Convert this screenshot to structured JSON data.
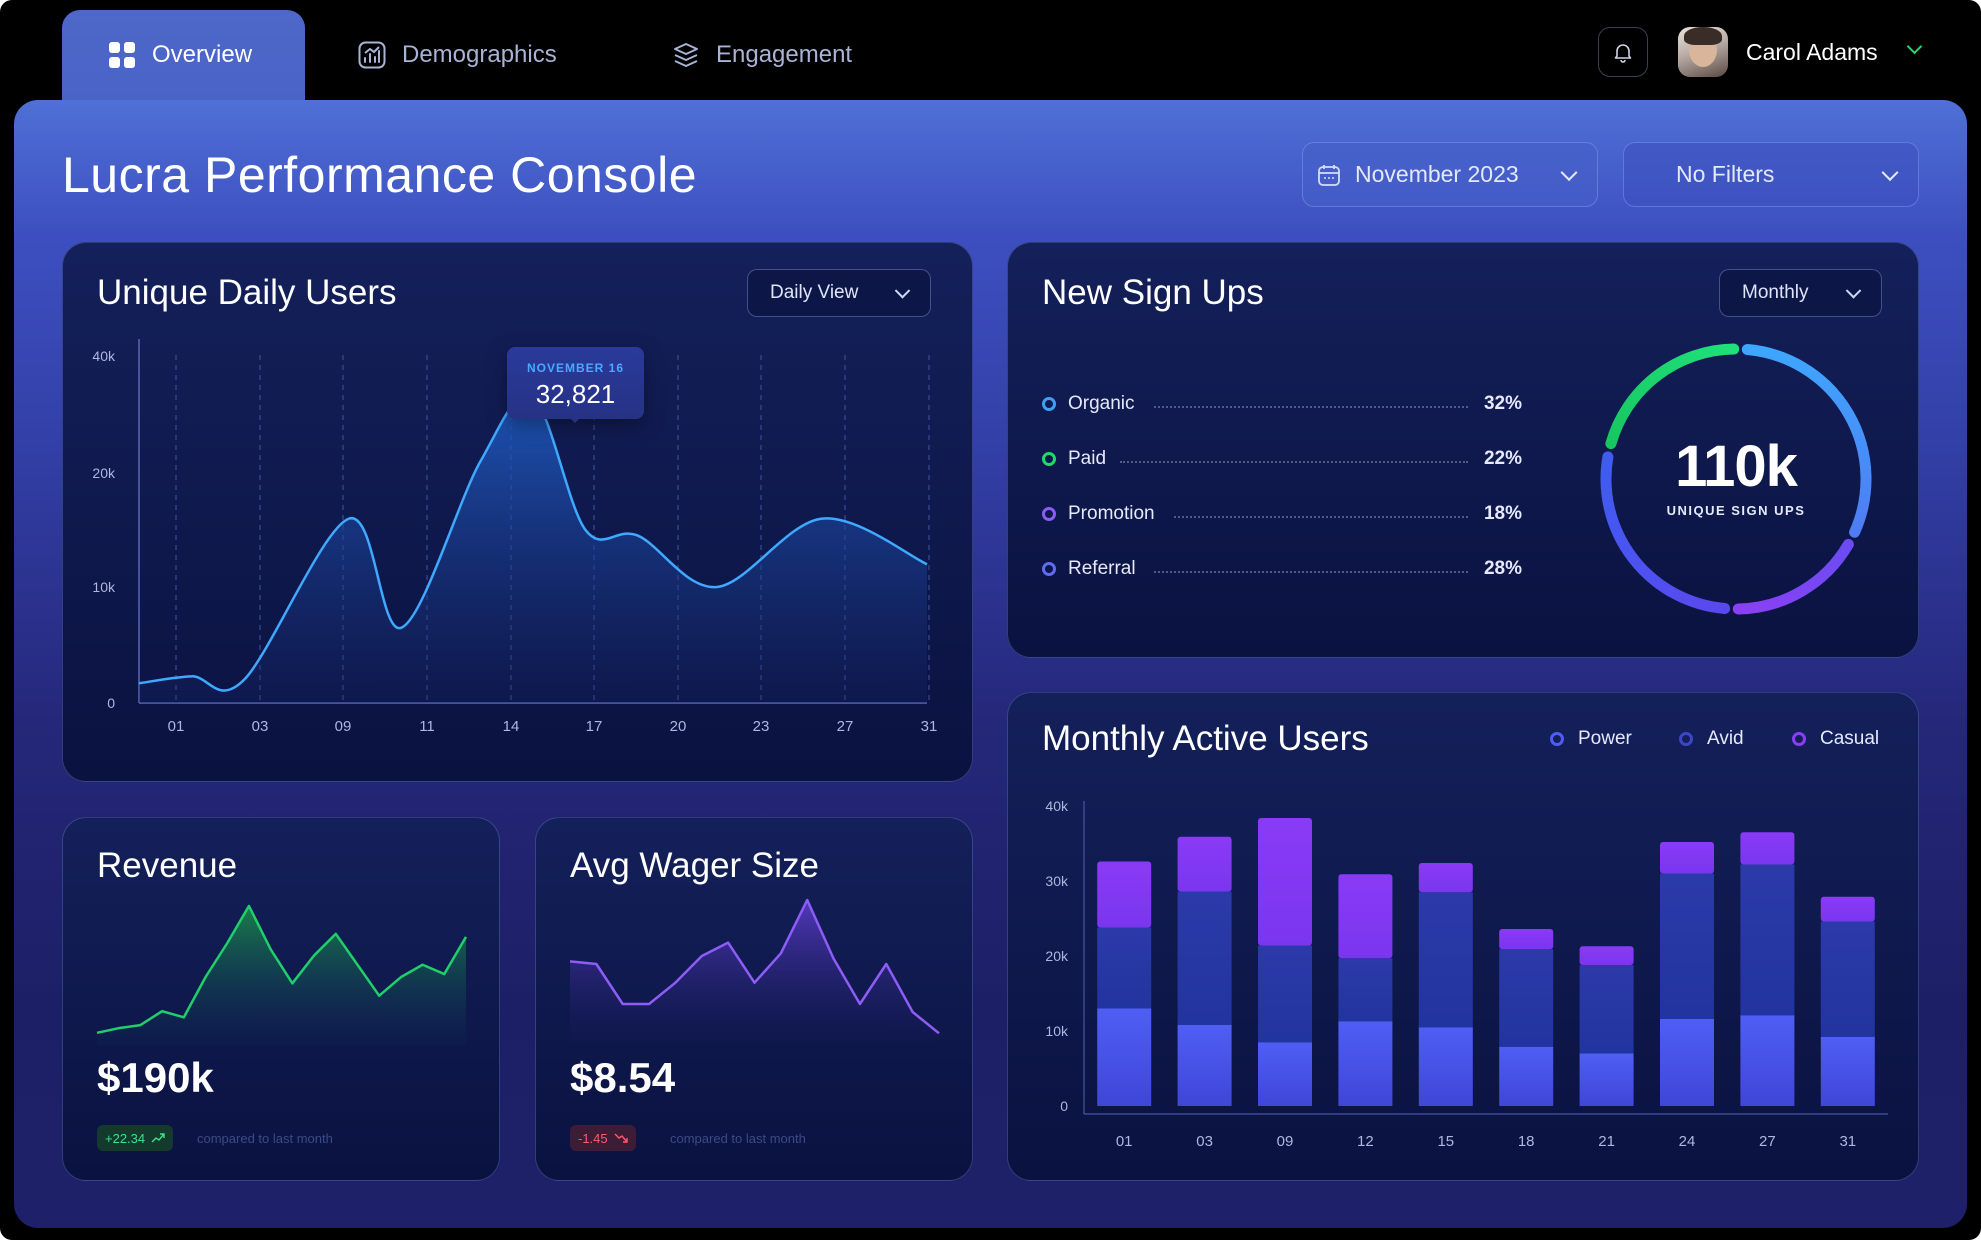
{
  "nav": {
    "tabs": [
      {
        "label": "Overview",
        "icon": "grid-icon"
      },
      {
        "label": "Demographics",
        "icon": "chart-icon"
      },
      {
        "label": "Engagement",
        "icon": "layers-icon"
      }
    ],
    "user_name": "Carol Adams"
  },
  "page": {
    "title": "Lucra Performance Console",
    "date_filter": "November 2023",
    "filters": "No Filters"
  },
  "daily_users": {
    "title": "Unique Daily Users",
    "view": "Daily View",
    "tooltip_label": "NOVEMBER 16",
    "tooltip_value": "32,821"
  },
  "signups": {
    "title": "New Sign Ups",
    "period": "Monthly",
    "total": "110k",
    "total_label": "UNIQUE SIGN UPS",
    "items": [
      {
        "name": "Organic",
        "pct": "32%",
        "color": "#3fa0f2"
      },
      {
        "name": "Paid",
        "pct": "22%",
        "color": "#22d86a"
      },
      {
        "name": "Promotion",
        "pct": "18%",
        "color": "#8b5cf6"
      },
      {
        "name": "Referral",
        "pct": "28%",
        "color": "#5f6cf0"
      }
    ]
  },
  "revenue": {
    "title": "Revenue",
    "value": "$190k",
    "delta": "+22.34",
    "compare": "compared to last month"
  },
  "wager": {
    "title": "Avg Wager Size",
    "value": "$8.54",
    "delta": "-1.45",
    "compare": "compared to last month"
  },
  "mau": {
    "title": "Monthly Active Users",
    "legend": [
      {
        "name": "Power",
        "color": "#4f5cf5"
      },
      {
        "name": "Avid",
        "color": "#3b46c8"
      },
      {
        "name": "Casual",
        "color": "#8a3ef5"
      }
    ]
  },
  "chart_data": [
    {
      "id": "unique-daily-users",
      "type": "area",
      "title": "Unique Daily Users",
      "x": [
        "01",
        "03",
        "09",
        "11",
        "14",
        "17",
        "20",
        "23",
        "27",
        "31"
      ],
      "y_ticks": [
        "0",
        "10k",
        "20k",
        "40k"
      ],
      "points": [
        {
          "x": 1,
          "y": 1700
        },
        {
          "x": 3,
          "y": 2300
        },
        {
          "x": 5,
          "y": 2000
        },
        {
          "x": 9,
          "y": 16000
        },
        {
          "x": 11,
          "y": 6500
        },
        {
          "x": 14,
          "y": 22000
        },
        {
          "x": 16,
          "y": 32821
        },
        {
          "x": 18,
          "y": 15000
        },
        {
          "x": 20,
          "y": 14500
        },
        {
          "x": 23,
          "y": 10000
        },
        {
          "x": 27,
          "y": 16000
        },
        {
          "x": 31,
          "y": 12000
        }
      ],
      "highlight": {
        "x": 16,
        "y": 32821
      }
    },
    {
      "id": "new-sign-ups",
      "type": "pie",
      "title": "New Sign Ups",
      "categories": [
        "Organic",
        "Paid",
        "Promotion",
        "Referral"
      ],
      "values": [
        32,
        22,
        18,
        28
      ]
    },
    {
      "id": "revenue",
      "type": "area",
      "title": "Revenue",
      "values": [
        4,
        7,
        9,
        18,
        14,
        40,
        62,
        86,
        58,
        36,
        54,
        68,
        48,
        28,
        40,
        48,
        42,
        66
      ]
    },
    {
      "id": "avg-wager-size",
      "type": "area",
      "title": "Avg Wager Size",
      "values": [
        56,
        54,
        24,
        24,
        40,
        60,
        70,
        40,
        62,
        102,
        58,
        24,
        54,
        18,
        2
      ]
    },
    {
      "id": "monthly-active-users",
      "type": "bar",
      "stacked": true,
      "title": "Monthly Active Users",
      "categories": [
        "01",
        "03",
        "09",
        "12",
        "15",
        "18",
        "21",
        "24",
        "27",
        "31"
      ],
      "y_ticks": [
        "0",
        "10k",
        "20k",
        "30k",
        "40k"
      ],
      "ylim": [
        0,
        40000
      ],
      "series": [
        {
          "name": "Power",
          "values": [
            13000,
            10800,
            8500,
            11300,
            10500,
            7900,
            7000,
            11600,
            12100,
            9200
          ]
        },
        {
          "name": "Avid",
          "values": [
            10800,
            17800,
            12900,
            8400,
            18000,
            13000,
            11800,
            19400,
            20100,
            15400
          ]
        },
        {
          "name": "Casual",
          "values": [
            8800,
            7300,
            17000,
            11200,
            3900,
            2700,
            2500,
            4200,
            4300,
            3300
          ]
        }
      ]
    }
  ]
}
